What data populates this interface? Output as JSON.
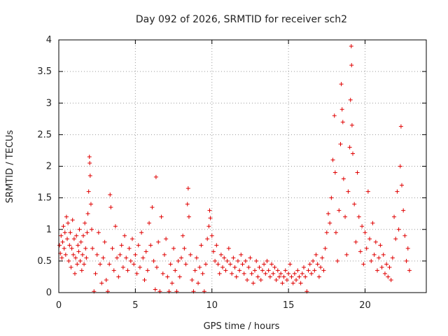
{
  "chart_data": {
    "type": "scatter",
    "title": "Day 092 of 2026, SRMTID for receiver sch2",
    "xlabel": "GPS time / hours",
    "ylabel": "SRMTID / TECUs",
    "xlim": [
      0,
      24
    ],
    "ylim": [
      0,
      4
    ],
    "xticks": [
      0,
      5,
      10,
      15,
      20
    ],
    "xtick_labels": [
      "0",
      "5",
      "10",
      "15",
      "20"
    ],
    "yticks": [
      0,
      0.5,
      1,
      1.5,
      2,
      2.5,
      3,
      3.5,
      4
    ],
    "ytick_labels": [
      "0",
      "0.5",
      "1",
      "1.5",
      "2",
      "2.5",
      "3",
      "3.5",
      "4"
    ],
    "grid": true,
    "marker": "plus",
    "series": [
      {
        "name": "sch2",
        "color": "#e00000",
        "points": [
          [
            0.05,
            0.75
          ],
          [
            0.1,
            0.62
          ],
          [
            0.15,
            0.9
          ],
          [
            0.2,
            0.55
          ],
          [
            0.25,
            0.8
          ],
          [
            0.3,
            1.05
          ],
          [
            0.35,
            0.7
          ],
          [
            0.4,
            0.95
          ],
          [
            0.45,
            0.6
          ],
          [
            0.5,
            1.2
          ],
          [
            0.55,
            0.85
          ],
          [
            0.6,
            1.1
          ],
          [
            0.65,
            0.5
          ],
          [
            0.7,
            0.75
          ],
          [
            0.75,
            0.95
          ],
          [
            0.8,
            0.4
          ],
          [
            0.85,
            0.7
          ],
          [
            0.9,
            1.15
          ],
          [
            0.95,
            0.6
          ],
          [
            1.0,
            0.85
          ],
          [
            1.05,
            0.3
          ],
          [
            1.1,
            0.55
          ],
          [
            1.15,
            0.9
          ],
          [
            1.2,
            0.45
          ],
          [
            1.25,
            0.75
          ],
          [
            1.3,
            0.65
          ],
          [
            1.35,
            1.0
          ],
          [
            1.4,
            0.5
          ],
          [
            1.45,
            0.8
          ],
          [
            1.5,
            0.35
          ],
          [
            1.55,
            0.6
          ],
          [
            1.6,
            0.9
          ],
          [
            1.65,
            0.45
          ],
          [
            1.7,
            1.1
          ],
          [
            1.75,
            0.7
          ],
          [
            1.8,
            0.55
          ],
          [
            1.85,
            0.95
          ],
          [
            1.9,
            1.25
          ],
          [
            1.95,
            1.6
          ],
          [
            2.0,
            2.15
          ],
          [
            2.02,
            2.05
          ],
          [
            2.05,
            1.85
          ],
          [
            2.1,
            1.4
          ],
          [
            2.15,
            1.0
          ],
          [
            2.2,
            0.7
          ],
          [
            2.3,
            0.02
          ],
          [
            2.4,
            0.3
          ],
          [
            2.5,
            0.6
          ],
          [
            2.6,
            0.95
          ],
          [
            2.7,
            0.45
          ],
          [
            2.8,
            0.15
          ],
          [
            2.9,
            0.55
          ],
          [
            3.0,
            0.8
          ],
          [
            3.1,
            0.2
          ],
          [
            3.2,
            0.02
          ],
          [
            3.3,
            0.45
          ],
          [
            3.35,
            1.55
          ],
          [
            3.4,
            1.35
          ],
          [
            3.5,
            0.7
          ],
          [
            3.6,
            0.35
          ],
          [
            3.7,
            1.05
          ],
          [
            3.8,
            0.55
          ],
          [
            3.9,
            0.25
          ],
          [
            4.0,
            0.6
          ],
          [
            4.1,
            0.75
          ],
          [
            4.2,
            0.4
          ],
          [
            4.3,
            0.9
          ],
          [
            4.4,
            0.55
          ],
          [
            4.5,
            0.35
          ],
          [
            4.6,
            0.7
          ],
          [
            4.7,
            0.5
          ],
          [
            4.8,
            0.85
          ],
          [
            4.9,
            0.45
          ],
          [
            5.0,
            0.6
          ],
          [
            5.1,
            0.3
          ],
          [
            5.2,
            0.75
          ],
          [
            5.3,
            0.4
          ],
          [
            5.4,
            0.95
          ],
          [
            5.5,
            0.55
          ],
          [
            5.6,
            0.2
          ],
          [
            5.7,
            0.65
          ],
          [
            5.8,
            0.35
          ],
          [
            5.9,
            1.1
          ],
          [
            6.0,
            0.75
          ],
          [
            6.1,
            1.35
          ],
          [
            6.2,
            0.5
          ],
          [
            6.3,
            0.05
          ],
          [
            6.35,
            1.83
          ],
          [
            6.4,
            0.4
          ],
          [
            6.5,
            0.8
          ],
          [
            6.6,
            0.02
          ],
          [
            6.7,
            1.2
          ],
          [
            6.8,
            0.3
          ],
          [
            6.9,
            0.6
          ],
          [
            7.0,
            0.85
          ],
          [
            7.1,
            0.25
          ],
          [
            7.2,
            0.02
          ],
          [
            7.3,
            0.45
          ],
          [
            7.4,
            0.15
          ],
          [
            7.5,
            0.7
          ],
          [
            7.6,
            0.35
          ],
          [
            7.7,
            0.02
          ],
          [
            7.8,
            0.5
          ],
          [
            7.9,
            0.25
          ],
          [
            8.0,
            0.55
          ],
          [
            8.1,
            0.9
          ],
          [
            8.2,
            0.7
          ],
          [
            8.3,
            0.45
          ],
          [
            8.4,
            1.4
          ],
          [
            8.45,
            1.65
          ],
          [
            8.5,
            1.2
          ],
          [
            8.6,
            0.6
          ],
          [
            8.7,
            0.2
          ],
          [
            8.8,
            0.02
          ],
          [
            8.9,
            0.35
          ],
          [
            9.0,
            0.55
          ],
          [
            9.1,
            0.15
          ],
          [
            9.2,
            0.4
          ],
          [
            9.3,
            0.75
          ],
          [
            9.4,
            0.3
          ],
          [
            9.5,
            0.02
          ],
          [
            9.6,
            0.45
          ],
          [
            9.7,
            0.85
          ],
          [
            9.8,
            1.05
          ],
          [
            9.85,
            1.3
          ],
          [
            9.9,
            1.18
          ],
          [
            10.0,
            0.9
          ],
          [
            10.1,
            0.65
          ],
          [
            10.2,
            0.5
          ],
          [
            10.3,
            0.75
          ],
          [
            10.4,
            0.45
          ],
          [
            10.5,
            0.3
          ],
          [
            10.6,
            0.6
          ],
          [
            10.7,
            0.4
          ],
          [
            10.8,
            0.55
          ],
          [
            10.9,
            0.35
          ],
          [
            11.0,
            0.5
          ],
          [
            11.1,
            0.7
          ],
          [
            11.2,
            0.45
          ],
          [
            11.3,
            0.3
          ],
          [
            11.4,
            0.55
          ],
          [
            11.5,
            0.4
          ],
          [
            11.6,
            0.25
          ],
          [
            11.7,
            0.5
          ],
          [
            11.8,
            0.35
          ],
          [
            11.9,
            0.6
          ],
          [
            12.0,
            0.45
          ],
          [
            12.1,
            0.3
          ],
          [
            12.2,
            0.5
          ],
          [
            12.3,
            0.2
          ],
          [
            12.4,
            0.4
          ],
          [
            12.5,
            0.55
          ],
          [
            12.6,
            0.3
          ],
          [
            12.7,
            0.15
          ],
          [
            12.8,
            0.35
          ],
          [
            12.9,
            0.5
          ],
          [
            13.0,
            0.25
          ],
          [
            13.1,
            0.4
          ],
          [
            13.2,
            0.2
          ],
          [
            13.3,
            0.35
          ],
          [
            13.4,
            0.45
          ],
          [
            13.5,
            0.3
          ],
          [
            13.6,
            0.5
          ],
          [
            13.7,
            0.35
          ],
          [
            13.8,
            0.25
          ],
          [
            13.9,
            0.45
          ],
          [
            14.0,
            0.3
          ],
          [
            14.1,
            0.4
          ],
          [
            14.2,
            0.2
          ],
          [
            14.3,
            0.35
          ],
          [
            14.4,
            0.25
          ],
          [
            14.5,
            0.3
          ],
          [
            14.6,
            0.15
          ],
          [
            14.7,
            0.25
          ],
          [
            14.8,
            0.35
          ],
          [
            14.9,
            0.2
          ],
          [
            15.0,
            0.3
          ],
          [
            15.1,
            0.45
          ],
          [
            15.2,
            0.25
          ],
          [
            15.3,
            0.15
          ],
          [
            15.4,
            0.3
          ],
          [
            15.5,
            0.2
          ],
          [
            15.6,
            0.35
          ],
          [
            15.7,
            0.25
          ],
          [
            15.8,
            0.15
          ],
          [
            15.9,
            0.3
          ],
          [
            16.0,
            0.4
          ],
          [
            16.1,
            0.25
          ],
          [
            16.2,
            0.02
          ],
          [
            16.3,
            0.35
          ],
          [
            16.4,
            0.45
          ],
          [
            16.5,
            0.3
          ],
          [
            16.6,
            0.5
          ],
          [
            16.7,
            0.35
          ],
          [
            16.8,
            0.6
          ],
          [
            16.9,
            0.45
          ],
          [
            17.0,
            0.25
          ],
          [
            17.1,
            0.4
          ],
          [
            17.2,
            0.55
          ],
          [
            17.3,
            0.35
          ],
          [
            17.4,
            0.7
          ],
          [
            17.5,
            0.95
          ],
          [
            17.6,
            1.25
          ],
          [
            17.7,
            1.1
          ],
          [
            17.8,
            1.5
          ],
          [
            17.9,
            2.1
          ],
          [
            18.0,
            2.8
          ],
          [
            18.05,
            1.9
          ],
          [
            18.1,
            0.95
          ],
          [
            18.2,
            0.5
          ],
          [
            18.3,
            1.3
          ],
          [
            18.4,
            2.35
          ],
          [
            18.45,
            3.3
          ],
          [
            18.5,
            2.9
          ],
          [
            18.55,
            2.7
          ],
          [
            18.6,
            1.8
          ],
          [
            18.7,
            1.2
          ],
          [
            18.8,
            0.6
          ],
          [
            18.9,
            1.6
          ],
          [
            19.0,
            2.3
          ],
          [
            19.05,
            3.05
          ],
          [
            19.1,
            3.9
          ],
          [
            19.12,
            3.6
          ],
          [
            19.15,
            2.65
          ],
          [
            19.2,
            2.2
          ],
          [
            19.3,
            1.4
          ],
          [
            19.4,
            0.8
          ],
          [
            19.5,
            1.9
          ],
          [
            19.6,
            1.2
          ],
          [
            19.7,
            0.65
          ],
          [
            19.8,
            1.05
          ],
          [
            19.9,
            0.45
          ],
          [
            20.0,
            0.95
          ],
          [
            20.1,
            0.7
          ],
          [
            20.2,
            1.6
          ],
          [
            20.3,
            0.85
          ],
          [
            20.4,
            0.5
          ],
          [
            20.5,
            1.1
          ],
          [
            20.6,
            0.6
          ],
          [
            20.7,
            0.8
          ],
          [
            20.8,
            0.35
          ],
          [
            20.9,
            0.55
          ],
          [
            21.0,
            0.75
          ],
          [
            21.1,
            0.4
          ],
          [
            21.2,
            0.6
          ],
          [
            21.3,
            0.3
          ],
          [
            21.4,
            0.45
          ],
          [
            21.5,
            0.25
          ],
          [
            21.6,
            0.4
          ],
          [
            21.7,
            0.2
          ],
          [
            21.8,
            0.55
          ],
          [
            21.9,
            1.2
          ],
          [
            22.0,
            0.85
          ],
          [
            22.1,
            1.6
          ],
          [
            22.2,
            1.0
          ],
          [
            22.3,
            2.0
          ],
          [
            22.35,
            2.63
          ],
          [
            22.4,
            1.7
          ],
          [
            22.5,
            1.3
          ],
          [
            22.6,
            0.9
          ],
          [
            22.7,
            0.5
          ],
          [
            22.8,
            0.7
          ],
          [
            22.9,
            0.35
          ]
        ]
      }
    ]
  }
}
